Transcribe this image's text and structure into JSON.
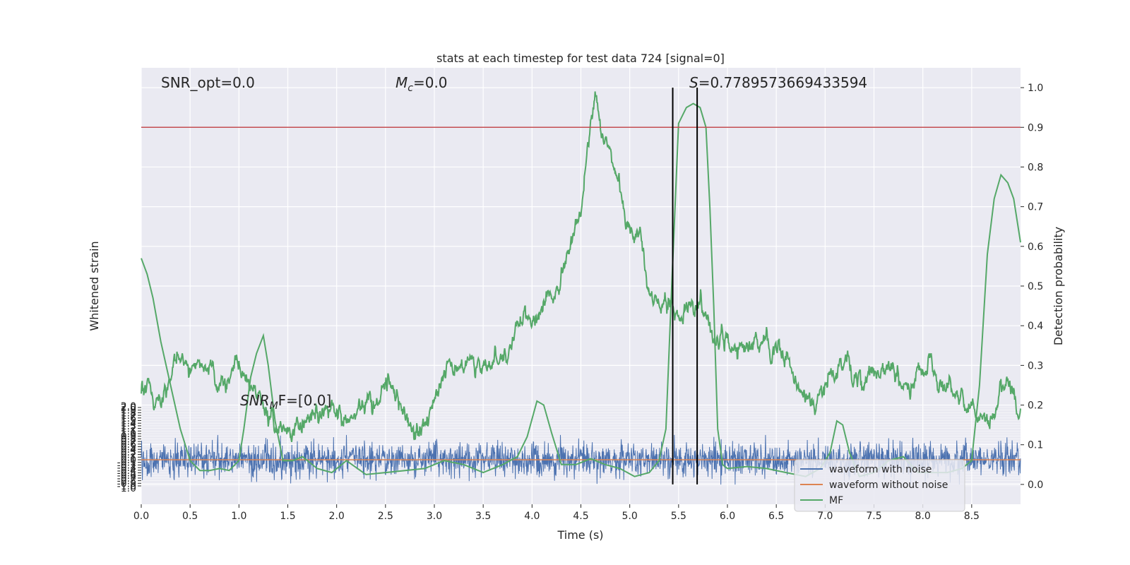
{
  "chart_data": {
    "type": "line",
    "title": "stats at each timestep for test data 724 [signal=0]",
    "xlabel": "Time (s)",
    "ylabel_left": "Whitened strain",
    "ylabel_right": "Detection probability",
    "xlim": [
      0.0,
      9.0
    ],
    "ylim_right": [
      -0.05,
      1.05
    ],
    "ylim_left": [
      -1.0,
      2.0
    ],
    "x_ticks": [
      "0.0",
      "0.5",
      "1.0",
      "1.5",
      "2.0",
      "2.5",
      "3.0",
      "3.5",
      "4.0",
      "4.5",
      "5.0",
      "5.5",
      "6.0",
      "6.5",
      "7.0",
      "7.5",
      "8.0",
      "8.5"
    ],
    "y_right_ticks": [
      "0.0",
      "0.1",
      "0.2",
      "0.3",
      "0.4",
      "0.5",
      "0.6",
      "0.7",
      "0.8",
      "0.9",
      "1.0"
    ],
    "y_left_ticks_top": "2.0",
    "y_left_ticks_bottom": "1.0",
    "grid": true,
    "threshold": 0.9,
    "vlines": [
      5.44,
      5.69
    ],
    "annotations": {
      "snr_opt": "SNR_opt=0.0",
      "mc_sym": "M",
      "mc_sub": "c",
      "mc_val": "=0.0",
      "s_sym": "S",
      "s_val": "=0.7789573669433594",
      "snr_mf_sym": "SNR",
      "snr_mf_sub": "M",
      "snr_mf_val": "F=[0.0]"
    },
    "legend": {
      "placement": "lower-right",
      "entries": [
        "waveform with noise",
        "waveform without noise",
        "MF"
      ]
    },
    "colors": {
      "noise": "#4c72b0",
      "clean": "#dd8452",
      "prob": "#55a868",
      "threshold": "#c44e52",
      "vline": "#000000",
      "panel": "#eaeaf2"
    },
    "series": [
      {
        "name": "waveform with noise",
        "mean": 0.0,
        "std": 0.33
      },
      {
        "name": "waveform without noise",
        "values": 0.0
      },
      {
        "name": "",
        "x": [
          0.0,
          0.1,
          0.2,
          0.3,
          0.4,
          0.5,
          0.6,
          0.7,
          0.8,
          0.9,
          1.0,
          1.1,
          1.2,
          1.3,
          1.4,
          1.5,
          1.6,
          1.7,
          1.8,
          1.9,
          2.0,
          2.1,
          2.2,
          2.3,
          2.4,
          2.5,
          2.6,
          2.7,
          2.8,
          2.9,
          3.0,
          3.1,
          3.2,
          3.3,
          3.4,
          3.5,
          3.6,
          3.7,
          3.8,
          3.9,
          4.0,
          4.1,
          4.2,
          4.3,
          4.4,
          4.5,
          4.55,
          4.6,
          4.65,
          4.7,
          4.8,
          4.9,
          5.0,
          5.1,
          5.2,
          5.3,
          5.4,
          5.5,
          5.6,
          5.7,
          5.8,
          5.9,
          6.0,
          6.1,
          6.2,
          6.3,
          6.4,
          6.5,
          6.6,
          6.7,
          6.8,
          6.9,
          7.0,
          7.1,
          7.2,
          7.3,
          7.4,
          7.5,
          7.6,
          7.7,
          7.8,
          7.9,
          8.0,
          8.1,
          8.2,
          8.3,
          8.4,
          8.5,
          8.6,
          8.7,
          8.8,
          8.9,
          9.0
        ],
        "values": [
          0.23,
          0.24,
          0.22,
          0.27,
          0.33,
          0.3,
          0.3,
          0.31,
          0.27,
          0.28,
          0.29,
          0.27,
          0.23,
          0.17,
          0.13,
          0.13,
          0.14,
          0.15,
          0.17,
          0.2,
          0.17,
          0.16,
          0.19,
          0.2,
          0.22,
          0.25,
          0.22,
          0.2,
          0.1,
          0.12,
          0.21,
          0.28,
          0.3,
          0.31,
          0.3,
          0.29,
          0.31,
          0.31,
          0.35,
          0.42,
          0.41,
          0.44,
          0.46,
          0.52,
          0.6,
          0.68,
          0.78,
          0.9,
          0.99,
          0.89,
          0.84,
          0.74,
          0.66,
          0.6,
          0.5,
          0.45,
          0.44,
          0.42,
          0.43,
          0.48,
          0.42,
          0.36,
          0.37,
          0.33,
          0.34,
          0.35,
          0.36,
          0.33,
          0.32,
          0.28,
          0.23,
          0.2,
          0.25,
          0.28,
          0.3,
          0.28,
          0.25,
          0.27,
          0.26,
          0.27,
          0.25,
          0.26,
          0.29,
          0.27,
          0.24,
          0.23,
          0.21,
          0.2,
          0.18,
          0.16,
          0.25,
          0.24,
          0.19
        ]
      },
      {
        "name": "MF",
        "x": [
          0.0,
          0.06,
          0.12,
          0.2,
          0.3,
          0.4,
          0.5,
          0.6,
          0.7,
          0.8,
          0.9,
          1.0,
          1.05,
          1.12,
          1.18,
          1.25,
          1.3,
          1.37,
          1.45,
          1.55,
          1.65,
          1.8,
          1.95,
          2.1,
          2.3,
          2.5,
          2.7,
          2.9,
          3.1,
          3.3,
          3.5,
          3.7,
          3.85,
          3.95,
          4.05,
          4.12,
          4.2,
          4.3,
          4.45,
          4.6,
          4.75,
          4.9,
          5.05,
          5.2,
          5.3,
          5.37,
          5.43,
          5.5,
          5.58,
          5.65,
          5.72,
          5.78,
          5.82,
          5.86,
          5.9,
          5.95,
          6.0,
          6.2,
          6.4,
          6.6,
          6.8,
          6.95,
          7.05,
          7.12,
          7.18,
          7.25,
          7.35,
          7.5,
          7.65,
          7.8,
          7.95,
          8.1,
          8.25,
          8.4,
          8.5,
          8.58,
          8.66,
          8.73,
          8.8,
          8.87,
          8.93,
          9.0
        ],
        "values": [
          0.57,
          0.53,
          0.47,
          0.36,
          0.25,
          0.14,
          0.06,
          0.035,
          0.035,
          0.04,
          0.035,
          0.06,
          0.14,
          0.27,
          0.33,
          0.375,
          0.3,
          0.16,
          0.06,
          0.06,
          0.07,
          0.04,
          0.03,
          0.06,
          0.025,
          0.03,
          0.035,
          0.04,
          0.06,
          0.05,
          0.03,
          0.05,
          0.07,
          0.12,
          0.21,
          0.2,
          0.13,
          0.05,
          0.05,
          0.065,
          0.05,
          0.04,
          0.02,
          0.03,
          0.06,
          0.14,
          0.5,
          0.91,
          0.95,
          0.96,
          0.95,
          0.9,
          0.7,
          0.45,
          0.14,
          0.05,
          0.04,
          0.045,
          0.04,
          0.03,
          0.02,
          0.04,
          0.08,
          0.16,
          0.15,
          0.08,
          0.02,
          0.03,
          0.06,
          0.07,
          0.03,
          0.03,
          0.03,
          0.04,
          0.06,
          0.25,
          0.58,
          0.72,
          0.78,
          0.76,
          0.72,
          0.61
        ]
      }
    ]
  }
}
